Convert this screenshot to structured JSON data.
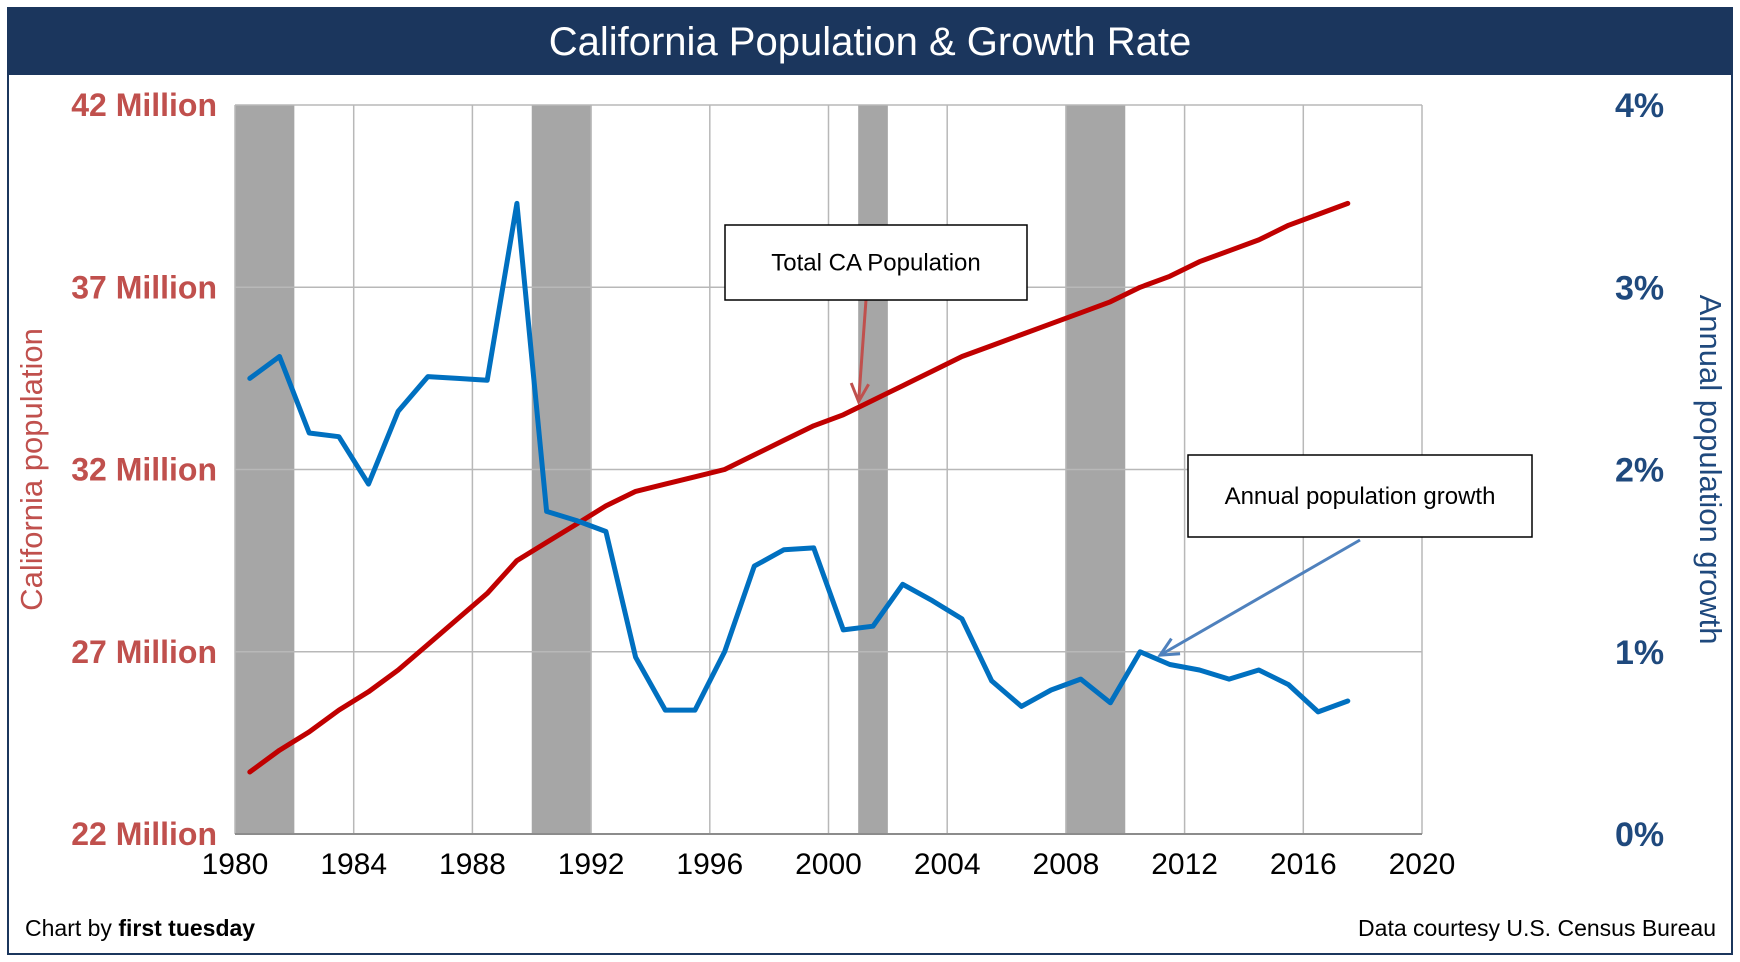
{
  "chart_data": {
    "type": "line",
    "title": "California Population & Growth Rate",
    "x_ticks": [
      1980,
      1984,
      1988,
      1992,
      1996,
      2000,
      2004,
      2008,
      2012,
      2016,
      2020
    ],
    "xlim": [
      1980,
      2020
    ],
    "y_left": {
      "label": "California population",
      "ylim": [
        22,
        42
      ],
      "unit": "Million",
      "ticks": [
        "22 Million",
        "27 Million",
        "32 Million",
        "37 Million",
        "42 Million"
      ],
      "tick_values": [
        22,
        27,
        32,
        37,
        42
      ],
      "color": "#c0504d"
    },
    "y_right": {
      "label": "Annual population growth",
      "ylim": [
        0,
        4
      ],
      "ticks": [
        "0%",
        "1%",
        "2%",
        "3%",
        "4%"
      ],
      "tick_values": [
        0,
        1,
        2,
        3,
        4
      ],
      "color": "#1f497d"
    },
    "grid": true,
    "recessions": [
      [
        1980.0,
        1982.0
      ],
      [
        1990.0,
        1992.0
      ],
      [
        2001.0,
        2002.0
      ],
      [
        2008.0,
        2010.0
      ]
    ],
    "recession_color": "#a6a6a6",
    "series": [
      {
        "axis": "left",
        "color": "#c00000",
        "x": [
          1980.5,
          1981.5,
          1982.5,
          1983.5,
          1984.5,
          1985.5,
          1986.5,
          1987.5,
          1988.5,
          1989.5,
          1990.5,
          1991.5,
          1992.5,
          1993.5,
          1994.5,
          1995.5,
          1996.5,
          1997.5,
          1998.5,
          1999.5,
          2000.5,
          2001.5,
          2002.5,
          2003.5,
          2004.5,
          2005.5,
          2006.5,
          2007.5,
          2008.5,
          2009.5,
          2010.5,
          2011.5,
          2012.5,
          2013.5,
          2014.5,
          2015.5,
          2016.5,
          2017.5
        ],
        "values": [
          23.7,
          24.3,
          24.8,
          25.4,
          25.9,
          26.5,
          27.2,
          27.9,
          28.6,
          29.5,
          30.0,
          30.5,
          31.0,
          31.4,
          31.6,
          31.8,
          32.0,
          32.4,
          32.8,
          33.2,
          33.5,
          33.9,
          34.3,
          34.7,
          35.1,
          35.4,
          35.7,
          36.0,
          36.3,
          36.6,
          37.0,
          37.3,
          37.7,
          38.0,
          38.3,
          38.7,
          39.0,
          39.3
        ]
      },
      {
        "axis": "right",
        "color": "#0070c0",
        "x": [
          1980.5,
          1981.5,
          1982.5,
          1983.5,
          1984.5,
          1985.5,
          1986.5,
          1987.5,
          1988.5,
          1989.5,
          1990.5,
          1991.5,
          1992.5,
          1993.5,
          1994.5,
          1995.5,
          1996.5,
          1997.5,
          1998.5,
          1999.5,
          2000.5,
          2001.5,
          2002.5,
          2003.5,
          2004.5,
          2005.5,
          2006.5,
          2007.5,
          2008.5,
          2009.5,
          2010.5,
          2011.5,
          2012.5,
          2013.5,
          2014.5,
          2015.5,
          2016.5,
          2017.5
        ],
        "values": [
          2.5,
          2.62,
          2.2,
          2.18,
          1.92,
          2.32,
          2.51,
          2.5,
          2.49,
          3.46,
          1.77,
          1.72,
          1.66,
          0.97,
          0.68,
          0.68,
          1.0,
          1.47,
          1.56,
          1.57,
          1.12,
          1.14,
          1.37,
          1.28,
          1.18,
          0.84,
          0.7,
          0.79,
          0.85,
          0.72,
          1.0,
          0.93,
          0.9,
          0.85,
          0.9,
          0.82,
          0.67,
          0.73
        ]
      }
    ],
    "annotations": [
      {
        "text": "Total CA Population",
        "target_series": 0,
        "target_x": 2001.0
      },
      {
        "text": "Annual population growth",
        "target_series": 1,
        "target_x": 2011.0
      }
    ]
  },
  "footer": {
    "credit_prefix": "Chart by ",
    "credit_name": "first tuesday",
    "source": "Data courtesy U.S. Census Bureau"
  }
}
